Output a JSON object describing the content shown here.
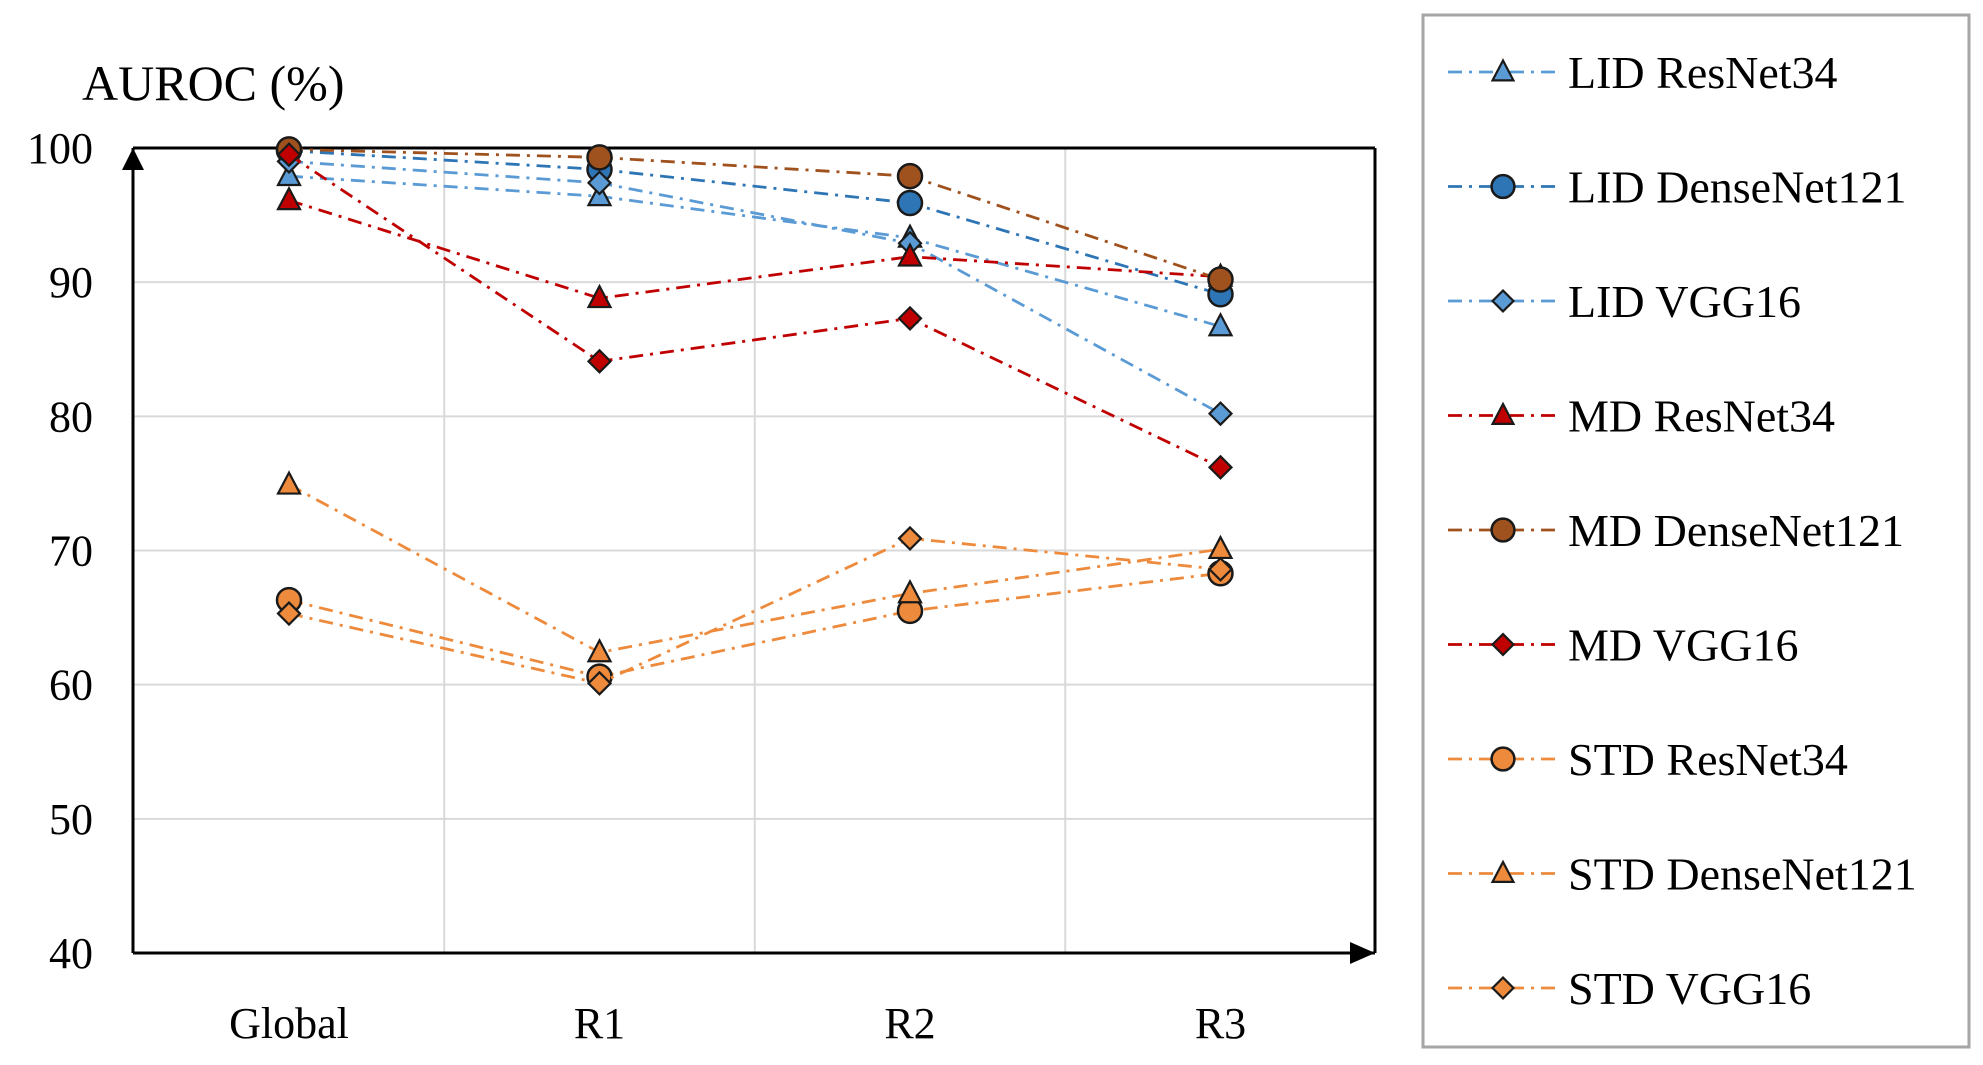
{
  "chart_data": {
    "type": "line",
    "ylabel": "AUROC (%)",
    "xlabel": "",
    "title": "",
    "categories": [
      "Global",
      "R1",
      "R2",
      "R3"
    ],
    "ylim": [
      40,
      100
    ],
    "yticks": [
      40,
      50,
      60,
      70,
      80,
      90,
      100
    ],
    "grid": true,
    "legend_position": "right",
    "series": [
      {
        "name": "LID ResNet34",
        "color": "#5B9BD5",
        "marker": "triangle",
        "values": [
          97.9,
          96.4,
          93.3,
          86.7
        ]
      },
      {
        "name": "LID DenseNet121",
        "color": "#2E75B6",
        "marker": "circle",
        "values": [
          99.8,
          98.4,
          95.9,
          89.1
        ]
      },
      {
        "name": "LID VGG16",
        "color": "#5B9BD5",
        "marker": "diamond",
        "values": [
          99.0,
          97.4,
          92.9,
          80.2
        ]
      },
      {
        "name": "MD ResNet34",
        "color": "#C00000",
        "marker": "triangle",
        "values": [
          96.1,
          88.8,
          91.9,
          90.4
        ]
      },
      {
        "name": "MD DenseNet121",
        "color": "#A0521E",
        "marker": "circle",
        "values": [
          99.9,
          99.3,
          97.9,
          90.2
        ]
      },
      {
        "name": "MD VGG16",
        "color": "#C00000",
        "marker": "diamond",
        "values": [
          99.5,
          84.1,
          87.3,
          76.2
        ]
      },
      {
        "name": "STD ResNet34",
        "color": "#ED8A3C",
        "marker": "circle",
        "values": [
          66.3,
          60.6,
          65.5,
          68.3
        ]
      },
      {
        "name": "STD DenseNet121",
        "color": "#ED8A3C",
        "marker": "triangle",
        "values": [
          74.9,
          62.4,
          66.8,
          70.1
        ]
      },
      {
        "name": "STD VGG16",
        "color": "#ED8A3C",
        "marker": "diamond",
        "values": [
          65.3,
          60.1,
          70.9,
          68.6
        ]
      }
    ]
  }
}
